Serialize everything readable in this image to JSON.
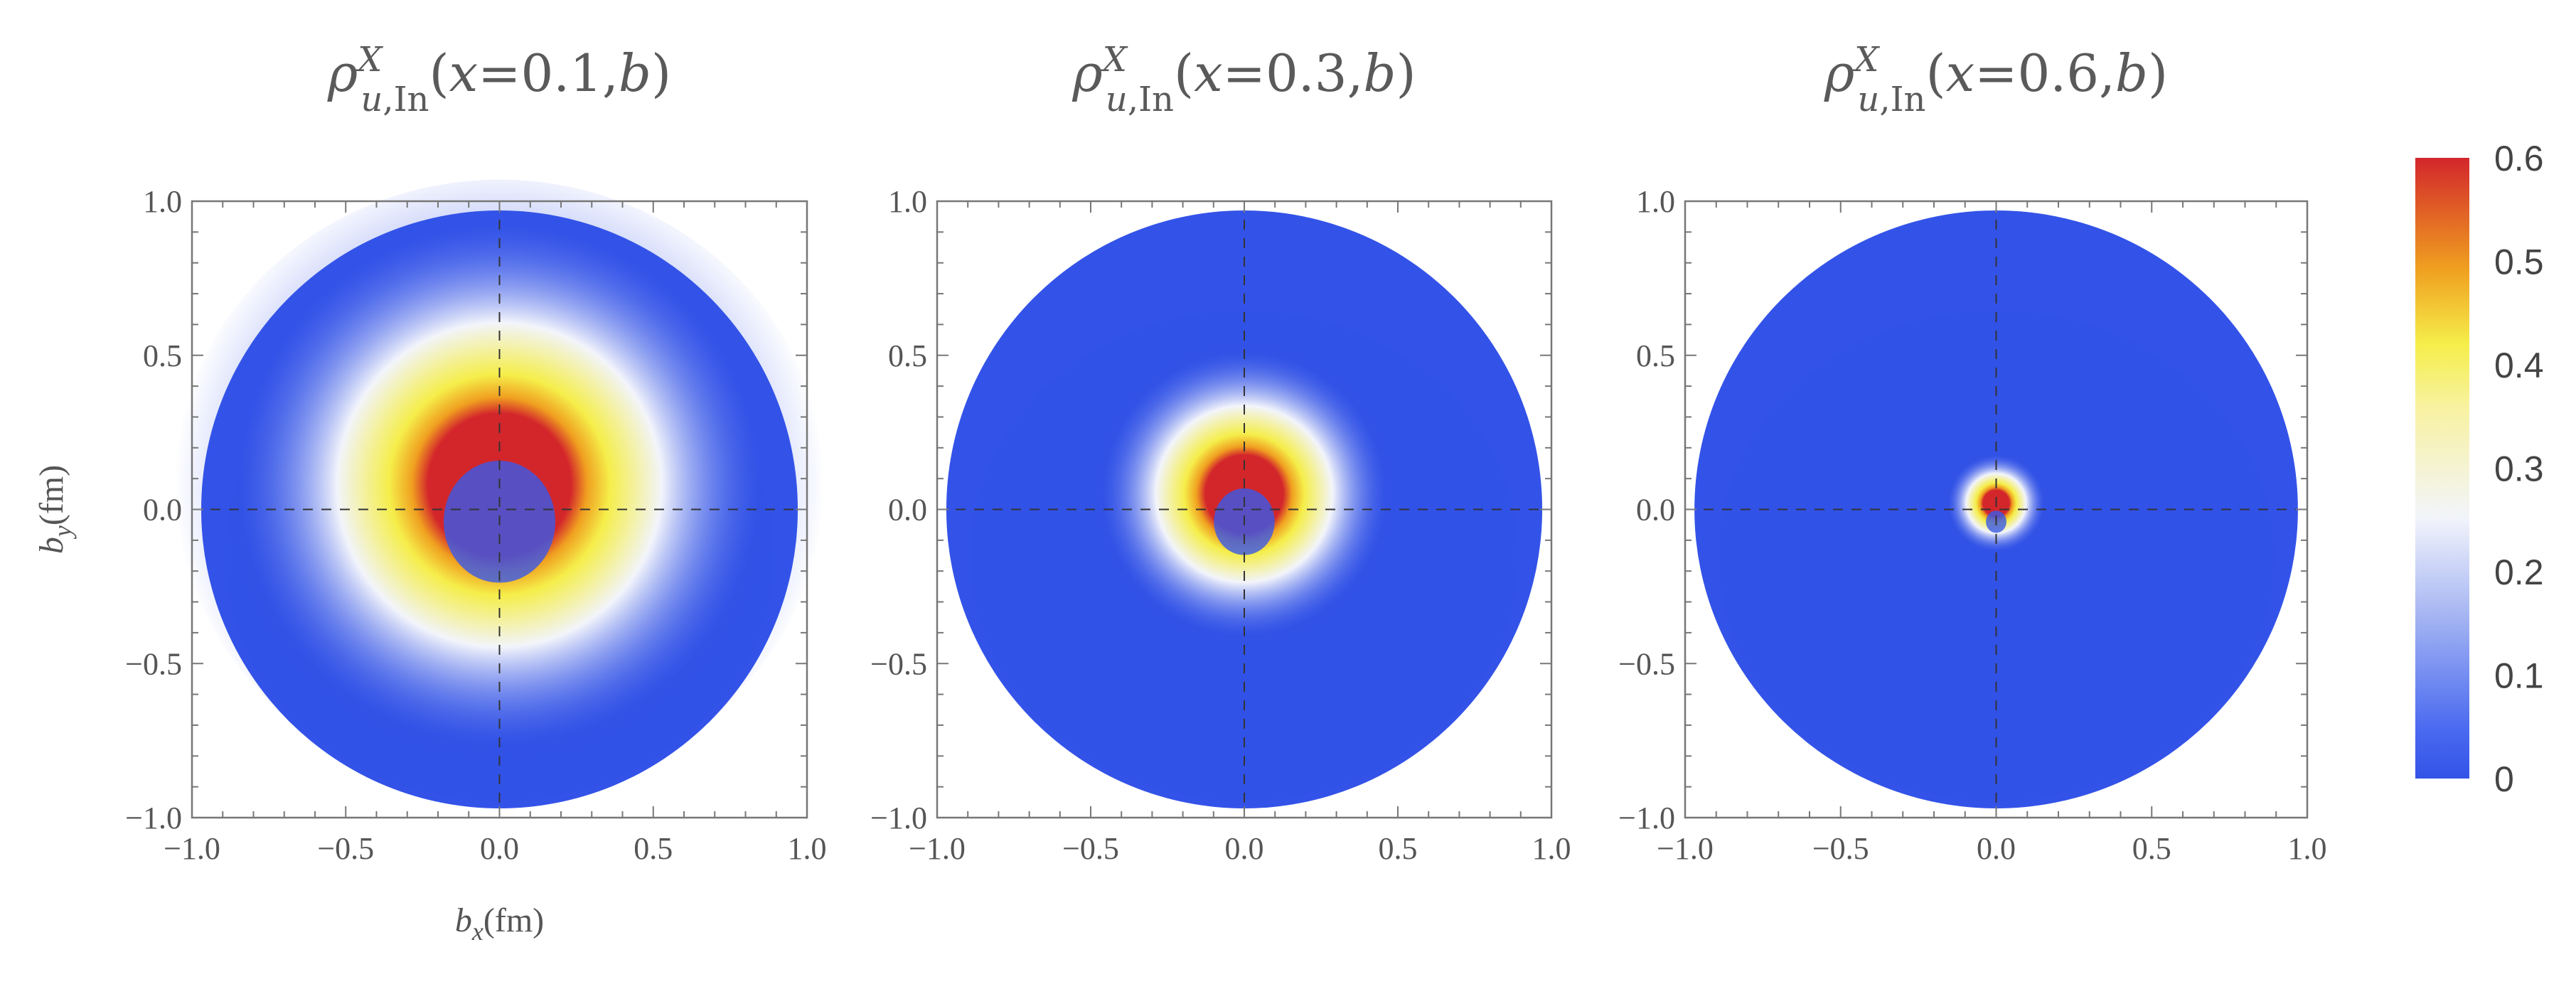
{
  "chart_data": {
    "type": "heatmap",
    "panels": [
      {
        "title": "ρ^X_{u,In}(x=0.1,b)",
        "title_parts": {
          "rho": "ρ",
          "sup": "X",
          "sub": "u,In",
          "args": "(x=0.1,b)"
        },
        "x": 0.1,
        "peak_by": 0.08,
        "width": 0.33
      },
      {
        "title": "ρ^X_{u,In}(x=0.3,b)",
        "title_parts": {
          "rho": "ρ",
          "sup": "X",
          "sub": "u,In",
          "args": "(x=0.3,b)"
        },
        "x": 0.3,
        "peak_by": 0.05,
        "width": 0.18
      },
      {
        "title": "ρ^X_{u,In}(x=0.6,b)",
        "title_parts": {
          "rho": "ρ",
          "sup": "X",
          "sub": "u,In",
          "args": "(x=0.6,b)"
        },
        "x": 0.6,
        "peak_by": 0.02,
        "width": 0.06
      }
    ],
    "xlabel": {
      "main": "b",
      "sub": "x",
      "unit": "(fm)"
    },
    "ylabel": {
      "main": "b",
      "sub": "y",
      "unit": "(fm)"
    },
    "xlim": [
      -1.0,
      1.0
    ],
    "ylim": [
      -1.0,
      1.0
    ],
    "xticks": [
      "−1.0",
      "−0.5",
      "0.0",
      "0.5",
      "1.0"
    ],
    "yticks": [
      "−1.0",
      "−0.5",
      "0.0",
      "0.5",
      "1.0"
    ],
    "tick_values": [
      -1.0,
      -0.5,
      0.0,
      0.5,
      1.0
    ],
    "domain_radius": 0.97,
    "colorbar": {
      "range": [
        0,
        0.6
      ],
      "ticks": [
        "0",
        "0.1",
        "0.2",
        "0.3",
        "0.4",
        "0.5",
        "0.6"
      ],
      "tick_values": [
        0,
        0.1,
        0.2,
        0.3,
        0.4,
        0.5,
        0.6
      ],
      "colors": [
        "#3353e8",
        "#f2f4fb",
        "#f5ee4a",
        "#f0a020",
        "#d3262b"
      ]
    },
    "crosshair_at": [
      0.0,
      0.0
    ]
  }
}
